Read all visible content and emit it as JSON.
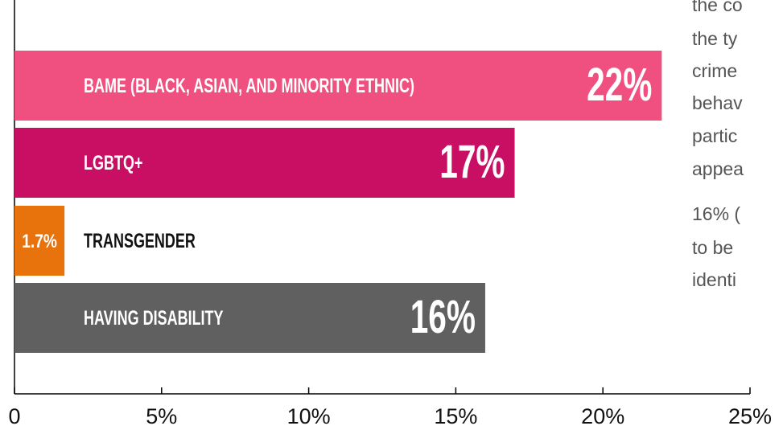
{
  "chart_data": {
    "type": "hbar",
    "categories": [
      "BAME (BLACK, ASIAN, AND MINORITY ETHNIC)",
      "LGBTQ+",
      "TRANSGENDER",
      "HAVING DISABILITY"
    ],
    "values": [
      22,
      17,
      1.7,
      16
    ],
    "value_labels": [
      "22%",
      "17%",
      "1.7%",
      "16%"
    ],
    "colors": [
      "#f0507f",
      "#c80f64",
      "#e8720c",
      "#606060"
    ],
    "xlim": [
      0,
      25
    ],
    "xticks": [
      0,
      {
        "value": 5,
        "label": "5%"
      },
      {
        "value": 10,
        "label": "10%"
      },
      {
        "value": 15,
        "label": "15%"
      },
      {
        "value": 20,
        "label": "20%"
      },
      {
        "value": 25,
        "label": "25%"
      }
    ],
    "side_text": [
      "the co",
      "the ty",
      "crime",
      "behav",
      "partic",
      "appea",
      "16% (",
      "to be",
      "identi"
    ]
  }
}
